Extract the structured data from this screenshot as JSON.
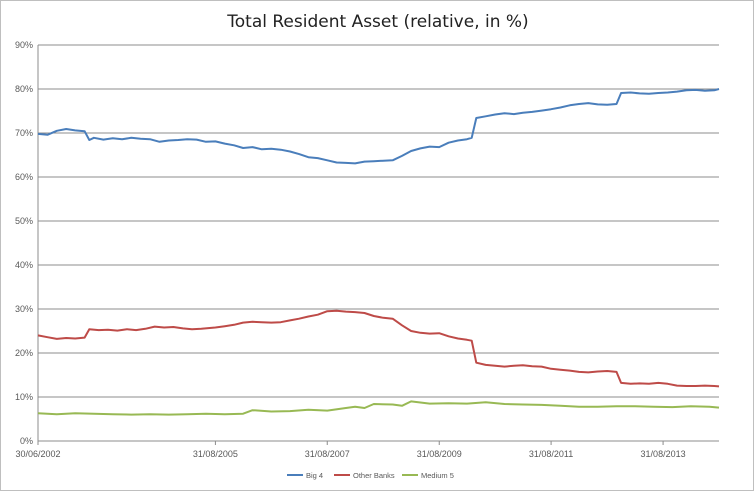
{
  "chart_data": {
    "type": "line",
    "title": "Total Resident Asset (relative, in %)",
    "xlabel": "",
    "ylabel": "",
    "x_range": [
      "2002-06-30",
      "2014-08-31"
    ],
    "ylim": [
      0,
      90
    ],
    "y_ticks": [
      "0%",
      "10%",
      "20%",
      "30%",
      "40%",
      "50%",
      "60%",
      "70%",
      "80%",
      "90%"
    ],
    "x_ticks": [
      {
        "date": "2002-06-30",
        "label": "30/06/2002"
      },
      {
        "date": "2005-08-31",
        "label": "31/08/2005"
      },
      {
        "date": "2007-08-31",
        "label": "31/08/2007"
      },
      {
        "date": "2009-08-31",
        "label": "31/08/2009"
      },
      {
        "date": "2011-08-31",
        "label": "31/08/2011"
      },
      {
        "date": "2013-08-31",
        "label": "31/08/2013"
      }
    ],
    "grid": "horizontal",
    "legend_position": "bottom",
    "series": [
      {
        "name": "Big 4",
        "color": "#4a7ebb",
        "points": [
          [
            "2002-06-30",
            69.8
          ],
          [
            "2002-08-31",
            69.6
          ],
          [
            "2002-10-31",
            70.5
          ],
          [
            "2002-12-31",
            70.9
          ],
          [
            "2003-02-28",
            70.6
          ],
          [
            "2003-04-30",
            70.4
          ],
          [
            "2003-05-31",
            68.4
          ],
          [
            "2003-06-30",
            68.9
          ],
          [
            "2003-08-31",
            68.5
          ],
          [
            "2003-10-31",
            68.8
          ],
          [
            "2003-12-31",
            68.6
          ],
          [
            "2004-02-29",
            68.9
          ],
          [
            "2004-04-30",
            68.7
          ],
          [
            "2004-06-30",
            68.6
          ],
          [
            "2004-08-31",
            68.0
          ],
          [
            "2004-10-31",
            68.3
          ],
          [
            "2004-12-31",
            68.4
          ],
          [
            "2005-02-28",
            68.6
          ],
          [
            "2005-04-30",
            68.5
          ],
          [
            "2005-06-30",
            68.0
          ],
          [
            "2005-08-31",
            68.1
          ],
          [
            "2005-10-31",
            67.6
          ],
          [
            "2005-12-31",
            67.2
          ],
          [
            "2006-02-28",
            66.6
          ],
          [
            "2006-04-30",
            66.8
          ],
          [
            "2006-06-30",
            66.3
          ],
          [
            "2006-08-31",
            66.4
          ],
          [
            "2006-10-31",
            66.2
          ],
          [
            "2006-12-31",
            65.8
          ],
          [
            "2007-02-28",
            65.2
          ],
          [
            "2007-04-30",
            64.5
          ],
          [
            "2007-06-30",
            64.3
          ],
          [
            "2007-08-31",
            63.8
          ],
          [
            "2007-10-31",
            63.3
          ],
          [
            "2007-12-31",
            63.2
          ],
          [
            "2008-02-29",
            63.1
          ],
          [
            "2008-04-30",
            63.5
          ],
          [
            "2008-06-30",
            63.6
          ],
          [
            "2008-08-31",
            63.7
          ],
          [
            "2008-10-31",
            63.8
          ],
          [
            "2008-12-31",
            64.8
          ],
          [
            "2009-02-28",
            65.9
          ],
          [
            "2009-04-30",
            66.5
          ],
          [
            "2009-06-30",
            66.9
          ],
          [
            "2009-08-31",
            66.8
          ],
          [
            "2009-10-31",
            67.8
          ],
          [
            "2009-12-31",
            68.3
          ],
          [
            "2010-02-28",
            68.6
          ],
          [
            "2010-03-31",
            68.9
          ],
          [
            "2010-04-30",
            73.4
          ],
          [
            "2010-06-30",
            73.8
          ],
          [
            "2010-08-31",
            74.2
          ],
          [
            "2010-10-31",
            74.5
          ],
          [
            "2010-12-31",
            74.3
          ],
          [
            "2011-02-28",
            74.6
          ],
          [
            "2011-04-30",
            74.8
          ],
          [
            "2011-06-30",
            75.1
          ],
          [
            "2011-08-31",
            75.4
          ],
          [
            "2011-10-31",
            75.8
          ],
          [
            "2011-12-31",
            76.3
          ],
          [
            "2012-02-29",
            76.6
          ],
          [
            "2012-04-30",
            76.8
          ],
          [
            "2012-06-30",
            76.5
          ],
          [
            "2012-08-31",
            76.4
          ],
          [
            "2012-10-31",
            76.6
          ],
          [
            "2012-11-30",
            79.1
          ],
          [
            "2013-01-31",
            79.2
          ],
          [
            "2013-03-31",
            79.0
          ],
          [
            "2013-05-31",
            78.9
          ],
          [
            "2013-07-31",
            79.1
          ],
          [
            "2013-09-30",
            79.2
          ],
          [
            "2013-11-30",
            79.4
          ],
          [
            "2014-01-31",
            79.7
          ],
          [
            "2014-03-31",
            79.8
          ],
          [
            "2014-05-31",
            79.6
          ],
          [
            "2014-07-31",
            79.7
          ],
          [
            "2014-08-31",
            80.0
          ]
        ]
      },
      {
        "name": "Other Banks",
        "color": "#be4b48",
        "points": [
          [
            "2002-06-30",
            24.0
          ],
          [
            "2002-08-31",
            23.6
          ],
          [
            "2002-10-31",
            23.2
          ],
          [
            "2002-12-31",
            23.4
          ],
          [
            "2003-02-28",
            23.3
          ],
          [
            "2003-04-30",
            23.5
          ],
          [
            "2003-05-31",
            25.4
          ],
          [
            "2003-07-31",
            25.2
          ],
          [
            "2003-09-30",
            25.3
          ],
          [
            "2003-11-30",
            25.1
          ],
          [
            "2004-01-31",
            25.4
          ],
          [
            "2004-03-31",
            25.2
          ],
          [
            "2004-05-31",
            25.5
          ],
          [
            "2004-07-31",
            26.0
          ],
          [
            "2004-09-30",
            25.8
          ],
          [
            "2004-11-30",
            25.9
          ],
          [
            "2005-01-31",
            25.6
          ],
          [
            "2005-03-31",
            25.4
          ],
          [
            "2005-05-31",
            25.5
          ],
          [
            "2005-08-31",
            25.8
          ],
          [
            "2005-10-31",
            26.1
          ],
          [
            "2005-12-31",
            26.4
          ],
          [
            "2006-02-28",
            26.9
          ],
          [
            "2006-04-30",
            27.1
          ],
          [
            "2006-06-30",
            27.0
          ],
          [
            "2006-08-31",
            26.9
          ],
          [
            "2006-10-31",
            27.0
          ],
          [
            "2006-12-31",
            27.4
          ],
          [
            "2007-02-28",
            27.8
          ],
          [
            "2007-04-30",
            28.3
          ],
          [
            "2007-06-30",
            28.7
          ],
          [
            "2007-08-31",
            29.5
          ],
          [
            "2007-10-31",
            29.6
          ],
          [
            "2007-12-31",
            29.4
          ],
          [
            "2008-02-29",
            29.3
          ],
          [
            "2008-04-30",
            29.1
          ],
          [
            "2008-06-30",
            28.4
          ],
          [
            "2008-08-31",
            28.0
          ],
          [
            "2008-10-31",
            27.8
          ],
          [
            "2008-12-31",
            26.3
          ],
          [
            "2009-02-28",
            25.0
          ],
          [
            "2009-04-30",
            24.6
          ],
          [
            "2009-06-30",
            24.4
          ],
          [
            "2009-08-31",
            24.5
          ],
          [
            "2009-10-31",
            23.8
          ],
          [
            "2009-12-31",
            23.3
          ],
          [
            "2010-02-28",
            23.0
          ],
          [
            "2010-03-31",
            22.8
          ],
          [
            "2010-04-30",
            17.8
          ],
          [
            "2010-06-30",
            17.3
          ],
          [
            "2010-08-31",
            17.1
          ],
          [
            "2010-10-31",
            16.9
          ],
          [
            "2010-12-31",
            17.1
          ],
          [
            "2011-02-28",
            17.2
          ],
          [
            "2011-04-30",
            17.0
          ],
          [
            "2011-06-30",
            16.9
          ],
          [
            "2011-08-31",
            16.4
          ],
          [
            "2011-10-31",
            16.2
          ],
          [
            "2011-12-31",
            16.0
          ],
          [
            "2012-02-29",
            15.7
          ],
          [
            "2012-04-30",
            15.6
          ],
          [
            "2012-06-30",
            15.8
          ],
          [
            "2012-08-31",
            15.9
          ],
          [
            "2012-10-31",
            15.7
          ],
          [
            "2012-11-30",
            13.2
          ],
          [
            "2013-01-31",
            13.0
          ],
          [
            "2013-03-31",
            13.1
          ],
          [
            "2013-05-31",
            13.0
          ],
          [
            "2013-07-31",
            13.2
          ],
          [
            "2013-09-30",
            13.0
          ],
          [
            "2013-11-30",
            12.6
          ],
          [
            "2014-01-31",
            12.5
          ],
          [
            "2014-03-31",
            12.5
          ],
          [
            "2014-05-31",
            12.6
          ],
          [
            "2014-07-31",
            12.5
          ],
          [
            "2014-08-31",
            12.4
          ]
        ]
      },
      {
        "name": "Medium 5",
        "color": "#98b954",
        "points": [
          [
            "2002-06-30",
            6.3
          ],
          [
            "2002-10-31",
            6.1
          ],
          [
            "2003-02-28",
            6.3
          ],
          [
            "2003-06-30",
            6.2
          ],
          [
            "2003-10-31",
            6.1
          ],
          [
            "2004-02-29",
            6.0
          ],
          [
            "2004-06-30",
            6.1
          ],
          [
            "2004-10-31",
            6.0
          ],
          [
            "2005-02-28",
            6.1
          ],
          [
            "2005-06-30",
            6.2
          ],
          [
            "2005-10-31",
            6.1
          ],
          [
            "2006-02-28",
            6.2
          ],
          [
            "2006-04-30",
            7.0
          ],
          [
            "2006-08-31",
            6.7
          ],
          [
            "2006-12-31",
            6.8
          ],
          [
            "2007-04-30",
            7.1
          ],
          [
            "2007-08-31",
            6.9
          ],
          [
            "2007-12-31",
            7.5
          ],
          [
            "2008-02-29",
            7.8
          ],
          [
            "2008-04-30",
            7.5
          ],
          [
            "2008-06-30",
            8.4
          ],
          [
            "2008-10-31",
            8.3
          ],
          [
            "2008-12-31",
            8.0
          ],
          [
            "2009-02-28",
            9.0
          ],
          [
            "2009-06-30",
            8.5
          ],
          [
            "2009-10-31",
            8.6
          ],
          [
            "2010-02-28",
            8.5
          ],
          [
            "2010-06-30",
            8.8
          ],
          [
            "2010-10-31",
            8.4
          ],
          [
            "2011-02-28",
            8.3
          ],
          [
            "2011-06-30",
            8.2
          ],
          [
            "2011-10-31",
            8.0
          ],
          [
            "2012-02-29",
            7.8
          ],
          [
            "2012-06-30",
            7.8
          ],
          [
            "2012-10-31",
            7.9
          ],
          [
            "2013-02-28",
            7.9
          ],
          [
            "2013-06-30",
            7.8
          ],
          [
            "2013-10-31",
            7.7
          ],
          [
            "2014-02-28",
            7.9
          ],
          [
            "2014-06-30",
            7.8
          ],
          [
            "2014-08-31",
            7.6
          ]
        ]
      }
    ]
  }
}
